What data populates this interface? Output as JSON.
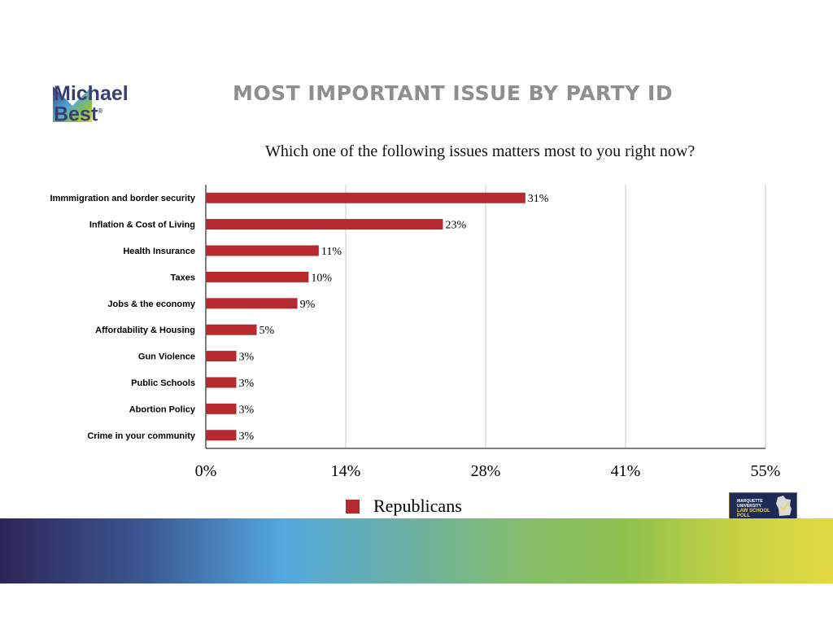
{
  "branding": {
    "logo_line1": "Michael",
    "logo_line2": "Best",
    "logo_mark": "®",
    "poll_badge_line1": "MARQUETTE UNIVERSITY",
    "poll_badge_line2": "LAW SCHOOL POLL"
  },
  "slide": {
    "title": "MOST IMPORTANT ISSUE BY PARTY ID"
  },
  "colors": {
    "bar": "#b5292f",
    "title_gray": "#8e8e8e",
    "logo_navy": "#3a3f73"
  },
  "chart_data": {
    "type": "bar",
    "orientation": "horizontal",
    "title": "Which one of the following issues matters most to you right now?",
    "categories": [
      "Immmigration and border security",
      "Inflation & Cost of Living",
      "Health Insurance",
      "Taxes",
      "Jobs & the economy",
      "Affordability & Housing",
      "Gun Violence",
      "Public Schools",
      "Abortion Policy",
      "Crime in your community"
    ],
    "series": [
      {
        "name": "Republicans",
        "color": "#b5292f",
        "values": [
          31.4,
          23.3,
          11.1,
          10.1,
          9.0,
          5.0,
          3.0,
          3.0,
          3.0,
          3.0
        ],
        "labels": [
          "31%",
          "23%",
          "11%",
          "10%",
          "9%",
          "5%",
          "3%",
          "3%",
          "3%",
          "3%"
        ]
      }
    ],
    "xlim": [
      0,
      55
    ],
    "xticks": [
      0,
      13.75,
      27.5,
      41.25,
      55
    ],
    "xtick_labels": [
      "0%",
      "14%",
      "28%",
      "41%",
      "55%"
    ],
    "grid": true,
    "legend_position": "bottom-center"
  }
}
